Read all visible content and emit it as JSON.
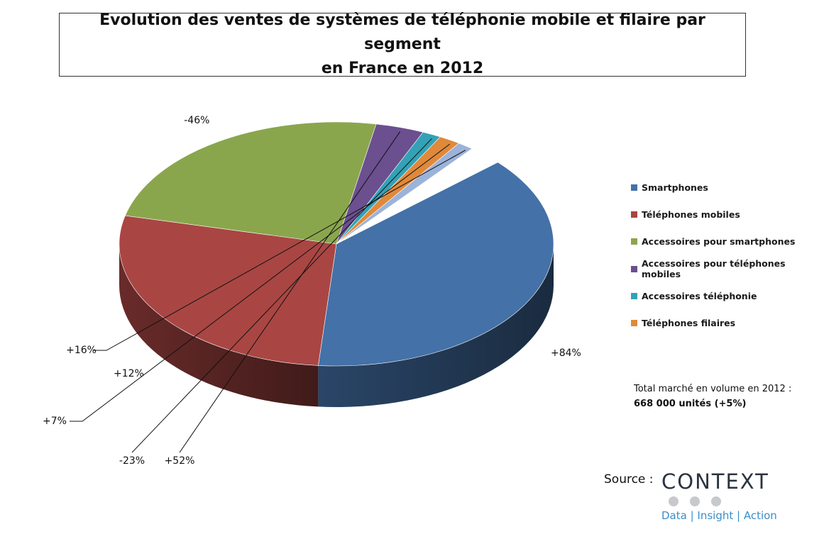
{
  "title": {
    "line1": "Evolution des ventes de systèmes de téléphonie mobile et filaire par segment",
    "line2": "en France en 2012"
  },
  "chart_data": {
    "type": "pie",
    "three_d": true,
    "slices": [
      {
        "name": "Smartphones",
        "share": 0.38,
        "growth_label": "+84%",
        "color": "#4471a7",
        "in_legend": true
      },
      {
        "name": "Téléphones mobiles",
        "share": 0.274,
        "growth_label": "+12%",
        "color": "#a94643",
        "in_legend": true
      },
      {
        "name": "Accessoires pour smartphones",
        "share": 0.242,
        "growth_label": "-46%",
        "color": "#8aa64d",
        "in_legend": true
      },
      {
        "name": "Accessoires pour téléphones mobiles",
        "share": 0.036,
        "growth_label": "+52%",
        "color": "#6b4f8f",
        "in_legend": true
      },
      {
        "name": "Accessoires téléphonie",
        "share": 0.014,
        "growth_label": "-23%",
        "color": "#33a2b6",
        "in_legend": true
      },
      {
        "name": "Téléphones filaires",
        "share": 0.016,
        "growth_label": "+7%",
        "color": "#e0893a",
        "in_legend": true
      },
      {
        "name": "",
        "share": 0.012,
        "growth_label": "+16%",
        "color": "#9cb3d9",
        "in_legend": false
      }
    ],
    "legend_position": "right"
  },
  "total": {
    "line1": "Total marché en volume en 2012 :",
    "line2": "668 000 unités (+5%)"
  },
  "source": {
    "label": "Source :",
    "logo_word": "CONTEXT",
    "logo_tagline": "Data | Insight | Action"
  }
}
